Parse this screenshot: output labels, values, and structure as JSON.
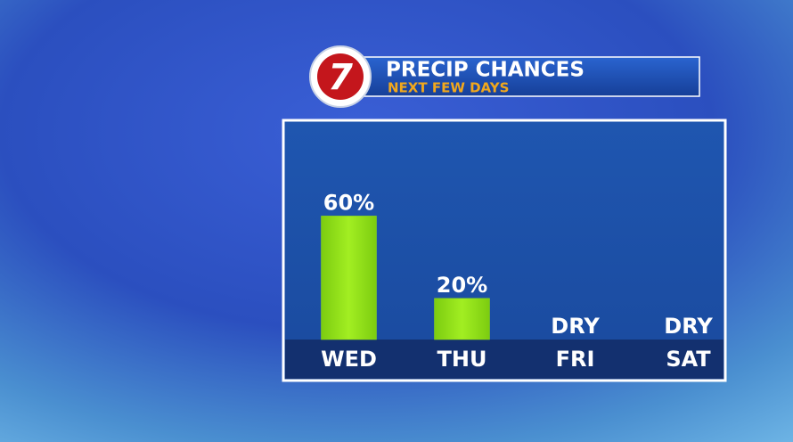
{
  "logo": "7",
  "chart_data": {
    "type": "bar",
    "title": "PRECIP CHANCES",
    "subtitle": "NEXT FEW DAYS",
    "categories": [
      "WED",
      "THU",
      "FRI",
      "SAT"
    ],
    "values": [
      60,
      20,
      0,
      0
    ],
    "value_labels": [
      "60%",
      "20%",
      "DRY",
      "DRY"
    ],
    "color": "#8ede14"
  }
}
